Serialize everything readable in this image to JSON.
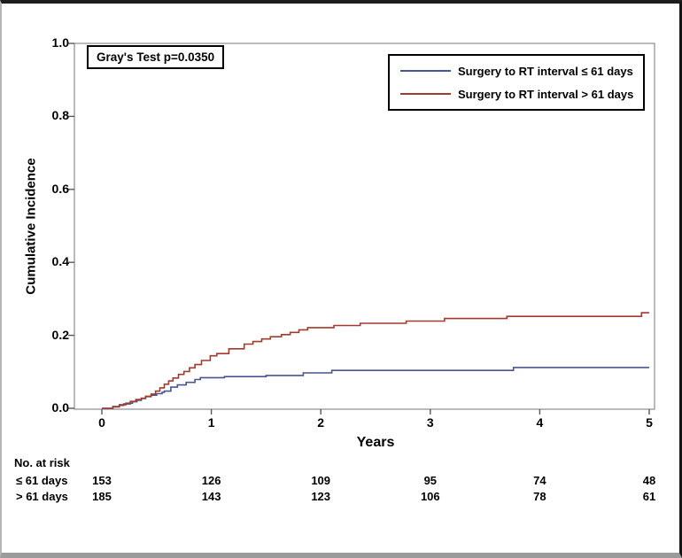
{
  "chart_data": {
    "type": "line",
    "subtype": "step-cumulative-incidence",
    "title": "",
    "xlabel": "Years",
    "ylabel": "Cumulative Incidence",
    "xlim": [
      0,
      5
    ],
    "ylim": [
      0.0,
      1.0
    ],
    "grid": false,
    "xticks": [
      "0",
      "1",
      "2",
      "3",
      "4",
      "5"
    ],
    "yticks": [
      "0.0",
      "0.2",
      "0.4",
      "0.6",
      "0.8",
      "1.0"
    ],
    "annotation": "Gray's Test p=0.0350",
    "legend_position": "top-right",
    "frame_color": "#8c8c8c",
    "tick_color": "#595959",
    "series": [
      {
        "name": "Surgery to RT interval ≤ 61 days",
        "color": "#47568f",
        "steps": [
          [
            0.1,
            0.005
          ],
          [
            0.16,
            0.01
          ],
          [
            0.22,
            0.014
          ],
          [
            0.28,
            0.018
          ],
          [
            0.32,
            0.022
          ],
          [
            0.36,
            0.027
          ],
          [
            0.4,
            0.032
          ],
          [
            0.45,
            0.036
          ],
          [
            0.5,
            0.04
          ],
          [
            0.55,
            0.044
          ],
          [
            0.57,
            0.047
          ],
          [
            0.63,
            0.058
          ],
          [
            0.69,
            0.064
          ],
          [
            0.77,
            0.071
          ],
          [
            0.85,
            0.079
          ],
          [
            0.9,
            0.084
          ],
          [
            1.12,
            0.087
          ],
          [
            1.5,
            0.09
          ],
          [
            1.84,
            0.097
          ],
          [
            2.1,
            0.104
          ],
          [
            3.76,
            0.112
          ]
        ],
        "final_value": 0.112
      },
      {
        "name": "Surgery to RT interval > 61 days",
        "color": "#A23A2E",
        "steps": [
          [
            0.1,
            0.004
          ],
          [
            0.16,
            0.008
          ],
          [
            0.2,
            0.012
          ],
          [
            0.26,
            0.019
          ],
          [
            0.31,
            0.024
          ],
          [
            0.36,
            0.028
          ],
          [
            0.4,
            0.033
          ],
          [
            0.45,
            0.039
          ],
          [
            0.49,
            0.047
          ],
          [
            0.53,
            0.056
          ],
          [
            0.57,
            0.066
          ],
          [
            0.61,
            0.075
          ],
          [
            0.65,
            0.083
          ],
          [
            0.7,
            0.093
          ],
          [
            0.75,
            0.101
          ],
          [
            0.8,
            0.111
          ],
          [
            0.85,
            0.12
          ],
          [
            0.91,
            0.131
          ],
          [
            0.99,
            0.144
          ],
          [
            1.05,
            0.15
          ],
          [
            1.16,
            0.163
          ],
          [
            1.3,
            0.176
          ],
          [
            1.38,
            0.183
          ],
          [
            1.46,
            0.19
          ],
          [
            1.54,
            0.196
          ],
          [
            1.64,
            0.202
          ],
          [
            1.72,
            0.208
          ],
          [
            1.8,
            0.215
          ],
          [
            1.88,
            0.221
          ],
          [
            2.12,
            0.227
          ],
          [
            2.36,
            0.233
          ],
          [
            2.78,
            0.239
          ],
          [
            3.13,
            0.246
          ],
          [
            3.7,
            0.252
          ],
          [
            4.93,
            0.262
          ]
        ],
        "final_value": 0.262
      }
    ],
    "at_risk": {
      "title": "No. at risk",
      "time_points": [
        0,
        1,
        2,
        3,
        4,
        5
      ],
      "rows": [
        {
          "label": "≤ 61 days",
          "values": [
            "153",
            "126",
            "109",
            "95",
            "74",
            "48"
          ]
        },
        {
          "label": "> 61 days",
          "values": [
            "185",
            "143",
            "123",
            "106",
            "78",
            "61"
          ]
        }
      ]
    }
  }
}
